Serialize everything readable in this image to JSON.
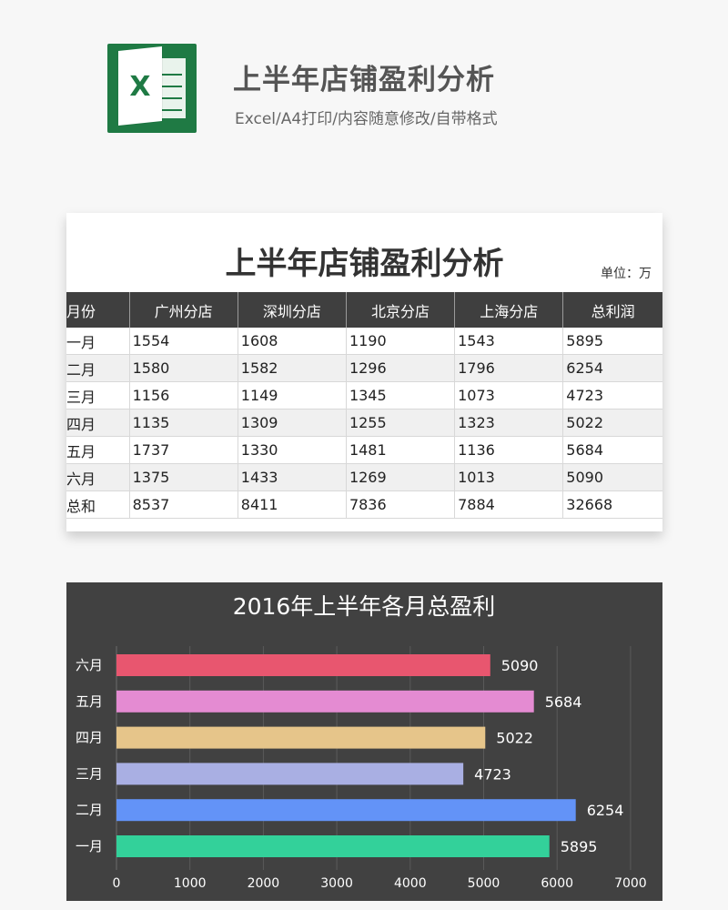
{
  "header": {
    "logo_letter": "X",
    "title": "上半年店铺盈利分析",
    "subtitle": "Excel/A4打印/内容随意修改/自带格式"
  },
  "table": {
    "title": "上半年店铺盈利分析",
    "unit": "单位：万",
    "columns": [
      "月份",
      "广州分店",
      "深圳分店",
      "北京分店",
      "上海分店",
      "总利润"
    ],
    "rows": [
      [
        "一月",
        "1554",
        "1608",
        "1190",
        "1543",
        "5895"
      ],
      [
        "二月",
        "1580",
        "1582",
        "1296",
        "1796",
        "6254"
      ],
      [
        "三月",
        "1156",
        "1149",
        "1345",
        "1073",
        "4723"
      ],
      [
        "四月",
        "1135",
        "1309",
        "1255",
        "1323",
        "5022"
      ],
      [
        "五月",
        "1737",
        "1330",
        "1481",
        "1136",
        "5684"
      ],
      [
        "六月",
        "1375",
        "1433",
        "1269",
        "1013",
        "5090"
      ],
      [
        "总和",
        "8537",
        "8411",
        "7836",
        "7884",
        "32668"
      ]
    ]
  },
  "chart_data": {
    "type": "bar",
    "orientation": "horizontal",
    "title": "2016年上半年各月总盈利",
    "categories": [
      "六月",
      "五月",
      "四月",
      "三月",
      "二月",
      "一月"
    ],
    "values": [
      5090,
      5684,
      5022,
      4723,
      6254,
      5895
    ],
    "colors": [
      "#e8566f",
      "#e48bd2",
      "#e6c58a",
      "#a9afe3",
      "#6393f7",
      "#33d19a"
    ],
    "xlim": [
      0,
      7000
    ],
    "xticks": [
      "0",
      "1000",
      "2000",
      "3000",
      "4000",
      "5000",
      "6000",
      "7000"
    ],
    "grid": true,
    "background": "#414141"
  }
}
